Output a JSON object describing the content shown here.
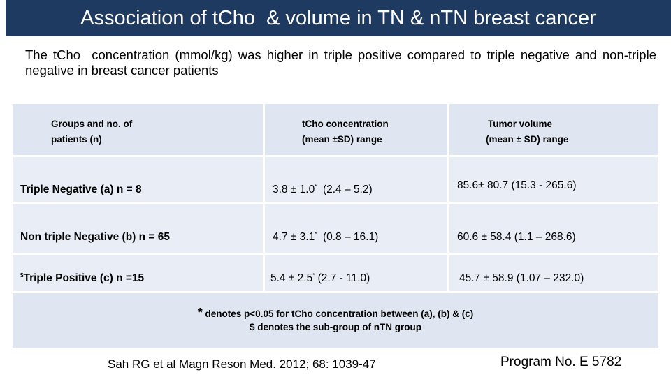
{
  "title": "Association of tCho  & volume in TN & nTN breast cancer",
  "intro": "The tCho  concentration (mmol/kg) was higher in triple positive compared to triple negative and non-triple negative in breast cancer patients",
  "table": {
    "headers": [
      {
        "line1": "Groups and no. of",
        "line2": "patients (n)"
      },
      {
        "line1": "tCho concentration",
        "line2": "(mean ±SD) range"
      },
      {
        "line1": "Tumor volume",
        "line2": "(mean ± SD) range"
      }
    ],
    "rows": [
      {
        "group": "Triple Negative (a) n = 8",
        "tcho_main": "3.8 ± 1.0",
        "tcho_range": "  (2.4 – 5.2)",
        "volume": "85.6± 80.7 (15.3 - 265.6)"
      },
      {
        "group": "Non triple Negative (b) n = 65",
        "tcho_main": "4.7 ± 3.1",
        "tcho_range": "  (0.8 – 16.1)",
        "volume": "60.6 ± 58.4 (1.1 – 268.6)"
      },
      {
        "group_prefix": "$",
        "group": "Triple Positive (c) n =15",
        "tcho_main": "5.4 ± 2.5",
        "tcho_range": " (2.7 - 11.0)",
        "volume": "45.7 ± 58.9 (1.07 – 232.0)"
      }
    ],
    "sig_marker": "*",
    "footnote_star": "*",
    "footnote1": " denotes p<0.05 for tCho concentration between (a), (b) & (c)",
    "footnote2": "$ denotes the sub-group of nTN group"
  },
  "citation": "Sah RG et al Magn Reson Med. 2012; 68: 1039-47",
  "program": "Program No. E 5782",
  "colors": {
    "title_bg": "#1f3a60",
    "header_bg": "#dfe6f1",
    "cell_bg": "#e9eef6"
  }
}
